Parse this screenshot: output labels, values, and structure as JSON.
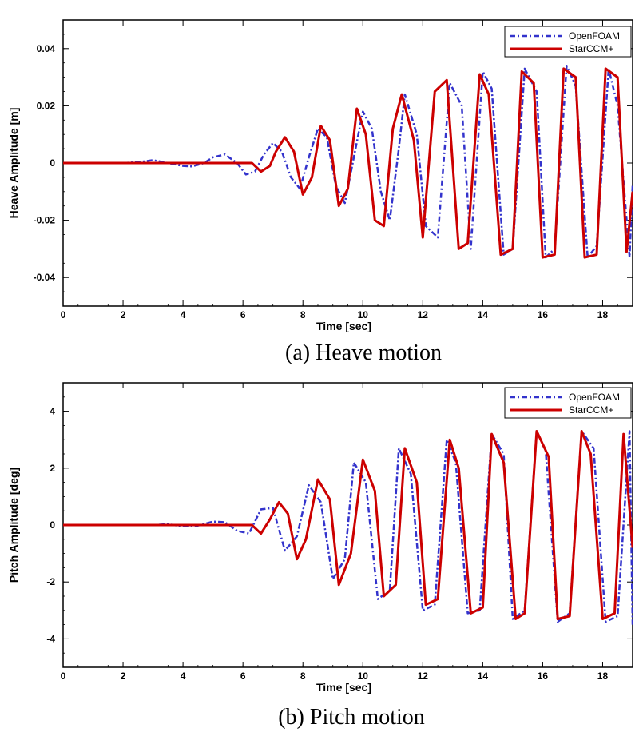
{
  "chart_data": [
    {
      "type": "line",
      "id": "heave",
      "title": "",
      "caption": "(a)  Heave  motion",
      "xlabel": "Time [sec]",
      "ylabel": "Heave Amplitude [m]",
      "xlim": [
        0,
        19
      ],
      "ylim": [
        -0.05,
        0.05
      ],
      "xticks": [
        0,
        2,
        4,
        6,
        8,
        10,
        12,
        14,
        16,
        18
      ],
      "yticks": [
        -0.04,
        -0.02,
        0,
        0.02,
        0.04
      ],
      "ytick_labels": [
        "-0.04",
        "-0.02",
        "0",
        "0.02",
        "0.04"
      ],
      "legend_position": "top-right",
      "series": [
        {
          "name": "OpenFOAM",
          "color": "#3333cc",
          "style": "dash-dot",
          "x": [
            0,
            0.5,
            1,
            1.5,
            2,
            2.5,
            3,
            3.5,
            4,
            4.3,
            4.7,
            5,
            5.4,
            5.8,
            6.1,
            6.4,
            6.7,
            7,
            7.3,
            7.6,
            7.9,
            8.2,
            8.5,
            8.8,
            9.1,
            9.4,
            9.7,
            10,
            10.3,
            10.6,
            10.9,
            11.2,
            11.4,
            11.8,
            12.1,
            12.5,
            12.9,
            13.3,
            13.6,
            14,
            14.3,
            14.7,
            15,
            15.4,
            15.8,
            16.1,
            16.4,
            16.8,
            17.1,
            17.5,
            17.8,
            18.2,
            18.5,
            18.9,
            19
          ],
          "values": [
            0,
            0,
            0,
            0,
            0,
            0.0003,
            0.001,
            0,
            -0.001,
            -0.0012,
            0,
            0.002,
            0.003,
            0,
            -0.004,
            -0.003,
            0.003,
            0.007,
            0.004,
            -0.005,
            -0.009,
            0.002,
            0.012,
            0.009,
            -0.008,
            -0.014,
            0.002,
            0.018,
            0.012,
            -0.01,
            -0.02,
            0.005,
            0.024,
            0.01,
            -0.022,
            -0.026,
            0.028,
            0.02,
            -0.03,
            0.032,
            0.026,
            -0.032,
            -0.03,
            0.033,
            0.025,
            -0.033,
            -0.03,
            0.034,
            0.027,
            -0.033,
            -0.029,
            0.033,
            0.02,
            -0.033,
            -0.008
          ]
        },
        {
          "name": "StarCCM+",
          "color": "#cc0000",
          "style": "solid",
          "x": [
            0,
            1,
            2,
            3,
            4,
            5,
            6,
            6.3,
            6.6,
            6.9,
            7.1,
            7.4,
            7.7,
            8,
            8.3,
            8.6,
            8.9,
            9.2,
            9.5,
            9.8,
            10.1,
            10.4,
            10.7,
            11,
            11.3,
            11.7,
            12,
            12.4,
            12.8,
            13.2,
            13.5,
            13.9,
            14.2,
            14.6,
            15,
            15.3,
            15.7,
            16,
            16.4,
            16.7,
            17.1,
            17.4,
            17.8,
            18.1,
            18.5,
            18.8,
            19
          ],
          "values": [
            0,
            0,
            0,
            0,
            0,
            0,
            0,
            0,
            -0.003,
            -0.001,
            0.004,
            0.009,
            0.004,
            -0.011,
            -0.005,
            0.013,
            0.008,
            -0.015,
            -0.009,
            0.019,
            0.01,
            -0.02,
            -0.022,
            0.012,
            0.024,
            0.008,
            -0.026,
            0.025,
            0.029,
            -0.03,
            -0.028,
            0.031,
            0.024,
            -0.032,
            -0.03,
            0.032,
            0.028,
            -0.033,
            -0.032,
            0.033,
            0.03,
            -0.033,
            -0.032,
            0.033,
            0.03,
            -0.031,
            -0.01
          ]
        }
      ]
    },
    {
      "type": "line",
      "id": "pitch",
      "title": "",
      "caption": "(b)  Pitch  motion",
      "xlabel": "Time [sec]",
      "ylabel": "Pitch Amplitude [deg]",
      "xlim": [
        0,
        19
      ],
      "ylim": [
        -5,
        5
      ],
      "xticks": [
        0,
        2,
        4,
        6,
        8,
        10,
        12,
        14,
        16,
        18
      ],
      "yticks": [
        -4,
        -2,
        0,
        2,
        4
      ],
      "ytick_labels": [
        "-4",
        "-2",
        "0",
        "2",
        "4"
      ],
      "legend_position": "top-right",
      "series": [
        {
          "name": "OpenFOAM",
          "color": "#3333cc",
          "style": "dash-dot",
          "x": [
            0,
            1,
            2,
            3,
            3.5,
            4,
            4.5,
            5,
            5.4,
            5.8,
            6.2,
            6.6,
            7,
            7.4,
            7.8,
            8.2,
            8.6,
            9,
            9.4,
            9.7,
            10.1,
            10.5,
            10.9,
            11.2,
            11.6,
            12,
            12.4,
            12.8,
            13.1,
            13.5,
            13.9,
            14.3,
            14.7,
            15,
            15.4,
            15.8,
            16.1,
            16.5,
            16.9,
            17.3,
            17.7,
            18.1,
            18.5,
            18.9,
            19
          ],
          "values": [
            0,
            0,
            0,
            0,
            0.03,
            -0.05,
            -0.02,
            0.12,
            0.1,
            -0.2,
            -0.3,
            0.55,
            0.6,
            -0.9,
            -0.4,
            1.4,
            0.8,
            -1.9,
            -1.2,
            2.2,
            1.5,
            -2.6,
            -2.3,
            2.7,
            1.8,
            -3.0,
            -2.8,
            3.0,
            2.2,
            -3.1,
            -3.0,
            3.2,
            2.5,
            -3.3,
            -3.0,
            3.3,
            2.6,
            -3.4,
            -3.1,
            3.3,
            2.7,
            -3.4,
            -3.2,
            3.3,
            -3.5
          ]
        },
        {
          "name": "StarCCM+",
          "color": "#cc0000",
          "style": "solid",
          "x": [
            0,
            1,
            2,
            3,
            4,
            5,
            6,
            6.3,
            6.6,
            6.9,
            7.2,
            7.5,
            7.8,
            8.1,
            8.5,
            8.9,
            9.2,
            9.6,
            10,
            10.4,
            10.7,
            11.1,
            11.4,
            11.8,
            12.1,
            12.5,
            12.9,
            13.2,
            13.6,
            14,
            14.3,
            14.7,
            15.1,
            15.4,
            15.8,
            16.2,
            16.5,
            16.9,
            17.3,
            17.6,
            18,
            18.4,
            18.7,
            19
          ],
          "values": [
            0,
            0,
            0,
            0,
            0,
            0,
            0,
            0,
            -0.3,
            0.2,
            0.8,
            0.4,
            -1.2,
            -0.5,
            1.6,
            0.9,
            -2.1,
            -1.0,
            2.3,
            1.2,
            -2.5,
            -2.1,
            2.7,
            1.5,
            -2.8,
            -2.6,
            3.0,
            2.0,
            -3.1,
            -2.9,
            3.2,
            2.2,
            -3.3,
            -3.1,
            3.3,
            2.4,
            -3.3,
            -3.2,
            3.3,
            2.5,
            -3.3,
            -3.1,
            3.2,
            -0.8
          ]
        }
      ]
    }
  ]
}
